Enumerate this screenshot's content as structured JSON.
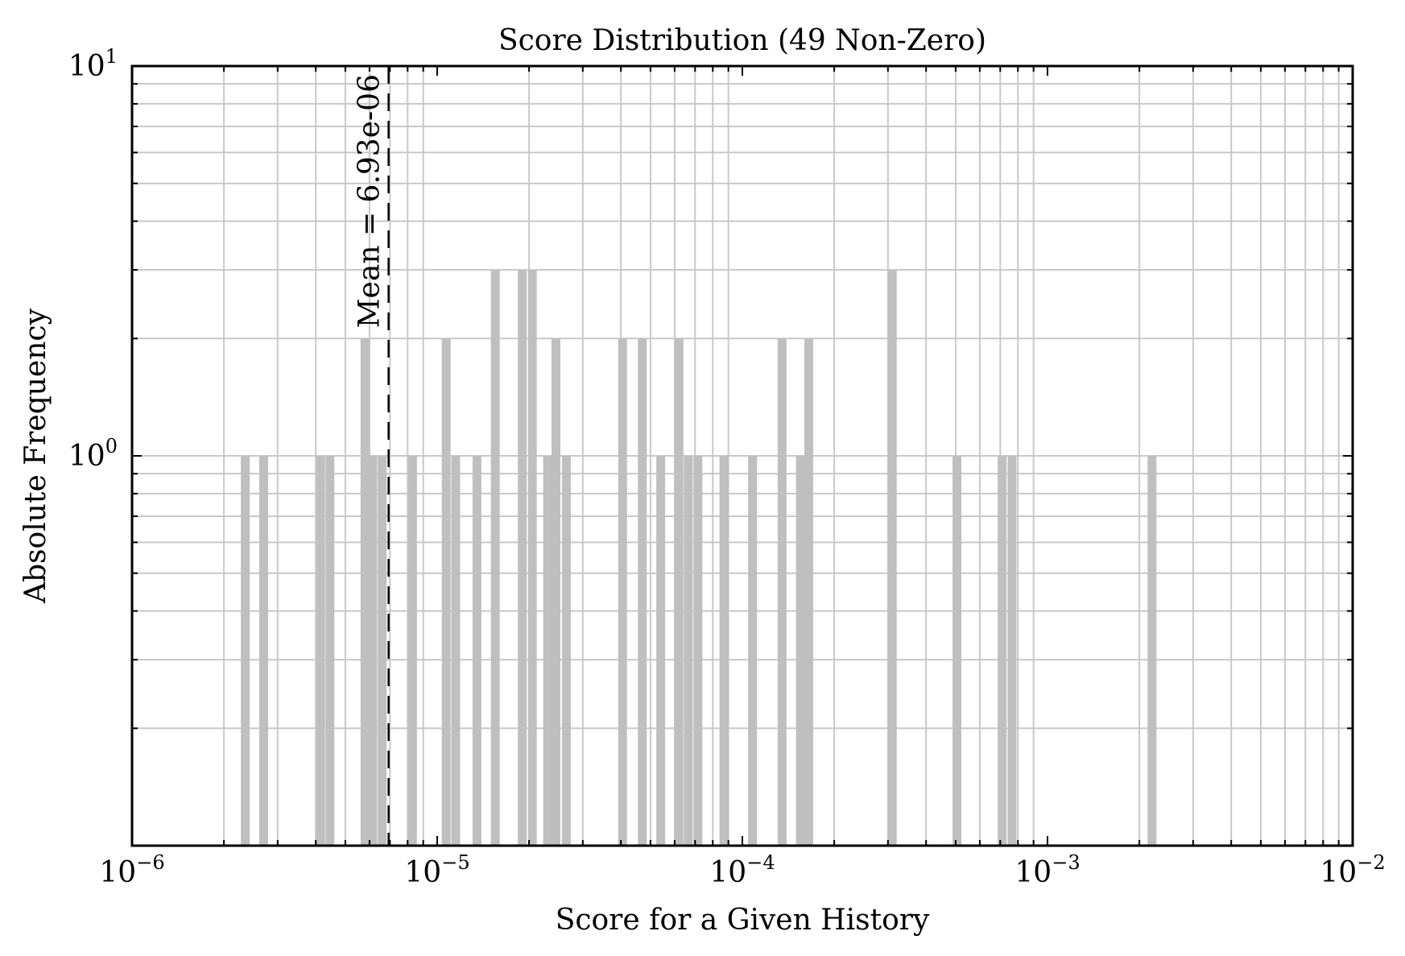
{
  "chart_data": {
    "type": "bar",
    "title": "Score Distribution (49 Non-Zero)",
    "xlabel": "Score for a Given History",
    "ylabel": "Absolute Frequency",
    "xscale": "log",
    "yscale": "log",
    "xlim": [
      1e-06,
      0.01
    ],
    "ylim": [
      0.1,
      10
    ],
    "grid": true,
    "colors": {
      "bar": "#bfbfbf",
      "grid": "#c8c8c8",
      "axis": "#000000"
    },
    "x_ticks": [
      {
        "base": "10",
        "exp": "−6"
      },
      {
        "base": "10",
        "exp": "−5"
      },
      {
        "base": "10",
        "exp": "−4"
      },
      {
        "base": "10",
        "exp": "−3"
      },
      {
        "base": "10",
        "exp": "−2"
      }
    ],
    "y_ticks": [
      {
        "value": 1,
        "base": "10",
        "exp": "0"
      },
      {
        "value": 10,
        "base": "10",
        "exp": "1"
      }
    ],
    "mean": {
      "value": 6.93e-06,
      "label": "Mean = 6.93e-06"
    },
    "bins": [
      {
        "x": 2.35e-06,
        "count": 1
      },
      {
        "x": 2.7e-06,
        "count": 1
      },
      {
        "x": 4.15e-06,
        "count": 1
      },
      {
        "x": 4.45e-06,
        "count": 1
      },
      {
        "x": 5.8e-06,
        "count": 2
      },
      {
        "x": 6.15e-06,
        "count": 1
      },
      {
        "x": 6.6e-06,
        "count": 1
      },
      {
        "x": 8.3e-06,
        "count": 1
      },
      {
        "x": 1.07e-05,
        "count": 2
      },
      {
        "x": 1.15e-05,
        "count": 1
      },
      {
        "x": 1.35e-05,
        "count": 1
      },
      {
        "x": 1.55e-05,
        "count": 3
      },
      {
        "x": 1.9e-05,
        "count": 3
      },
      {
        "x": 2.05e-05,
        "count": 3
      },
      {
        "x": 2.3e-05,
        "count": 1
      },
      {
        "x": 2.45e-05,
        "count": 2
      },
      {
        "x": 2.65e-05,
        "count": 1
      },
      {
        "x": 4.05e-05,
        "count": 2
      },
      {
        "x": 4.7e-05,
        "count": 2
      },
      {
        "x": 5.4e-05,
        "count": 1
      },
      {
        "x": 6.2e-05,
        "count": 2
      },
      {
        "x": 6.65e-05,
        "count": 1
      },
      {
        "x": 7.15e-05,
        "count": 1
      },
      {
        "x": 8.7e-05,
        "count": 1
      },
      {
        "x": 0.000108,
        "count": 1
      },
      {
        "x": 0.000135,
        "count": 2
      },
      {
        "x": 0.000155,
        "count": 1
      },
      {
        "x": 0.000165,
        "count": 2
      },
      {
        "x": 0.00031,
        "count": 3
      },
      {
        "x": 0.000505,
        "count": 1
      },
      {
        "x": 0.00071,
        "count": 1
      },
      {
        "x": 0.000765,
        "count": 1
      },
      {
        "x": 0.0022,
        "count": 1
      }
    ]
  }
}
